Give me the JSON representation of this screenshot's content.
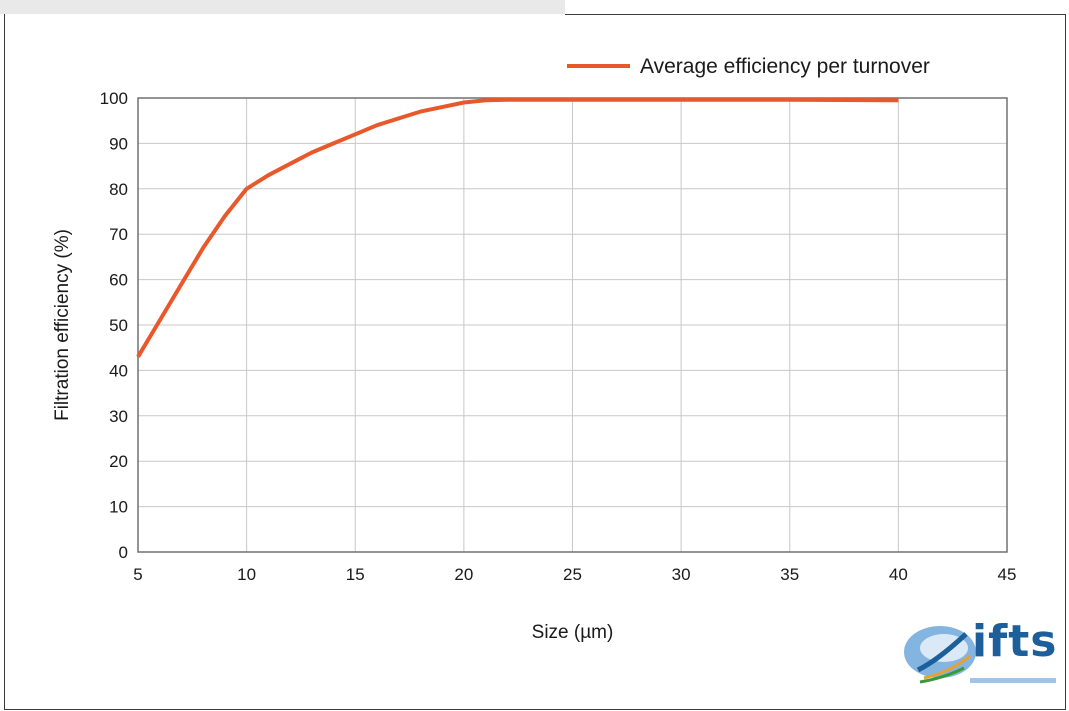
{
  "chart_data": {
    "type": "line",
    "title": "",
    "xlabel": "Size (µm)",
    "ylabel": "Filtration efficiency (%)",
    "xlim": [
      5,
      45
    ],
    "ylim": [
      0,
      100
    ],
    "xticks": [
      5,
      10,
      15,
      20,
      25,
      30,
      35,
      40,
      45
    ],
    "yticks": [
      0,
      10,
      20,
      30,
      40,
      50,
      60,
      70,
      80,
      90,
      100
    ],
    "grid": true,
    "legend_position": "top-right",
    "series": [
      {
        "name": "Average efficiency per turnover",
        "color": "#e8582a",
        "x": [
          5,
          6,
          7,
          8,
          9,
          10,
          11,
          12,
          13,
          14,
          15,
          16,
          17,
          18,
          19,
          20,
          21,
          22,
          25,
          30,
          35,
          40
        ],
        "y": [
          43,
          51,
          59,
          67,
          74,
          80,
          83,
          85.5,
          88,
          90,
          92,
          94,
          95.5,
          97,
          98,
          99,
          99.5,
          99.6,
          99.6,
          99.6,
          99.6,
          99.5
        ]
      }
    ]
  },
  "logo": {
    "text": "ifts",
    "icon": "ifts-logo-icon"
  }
}
